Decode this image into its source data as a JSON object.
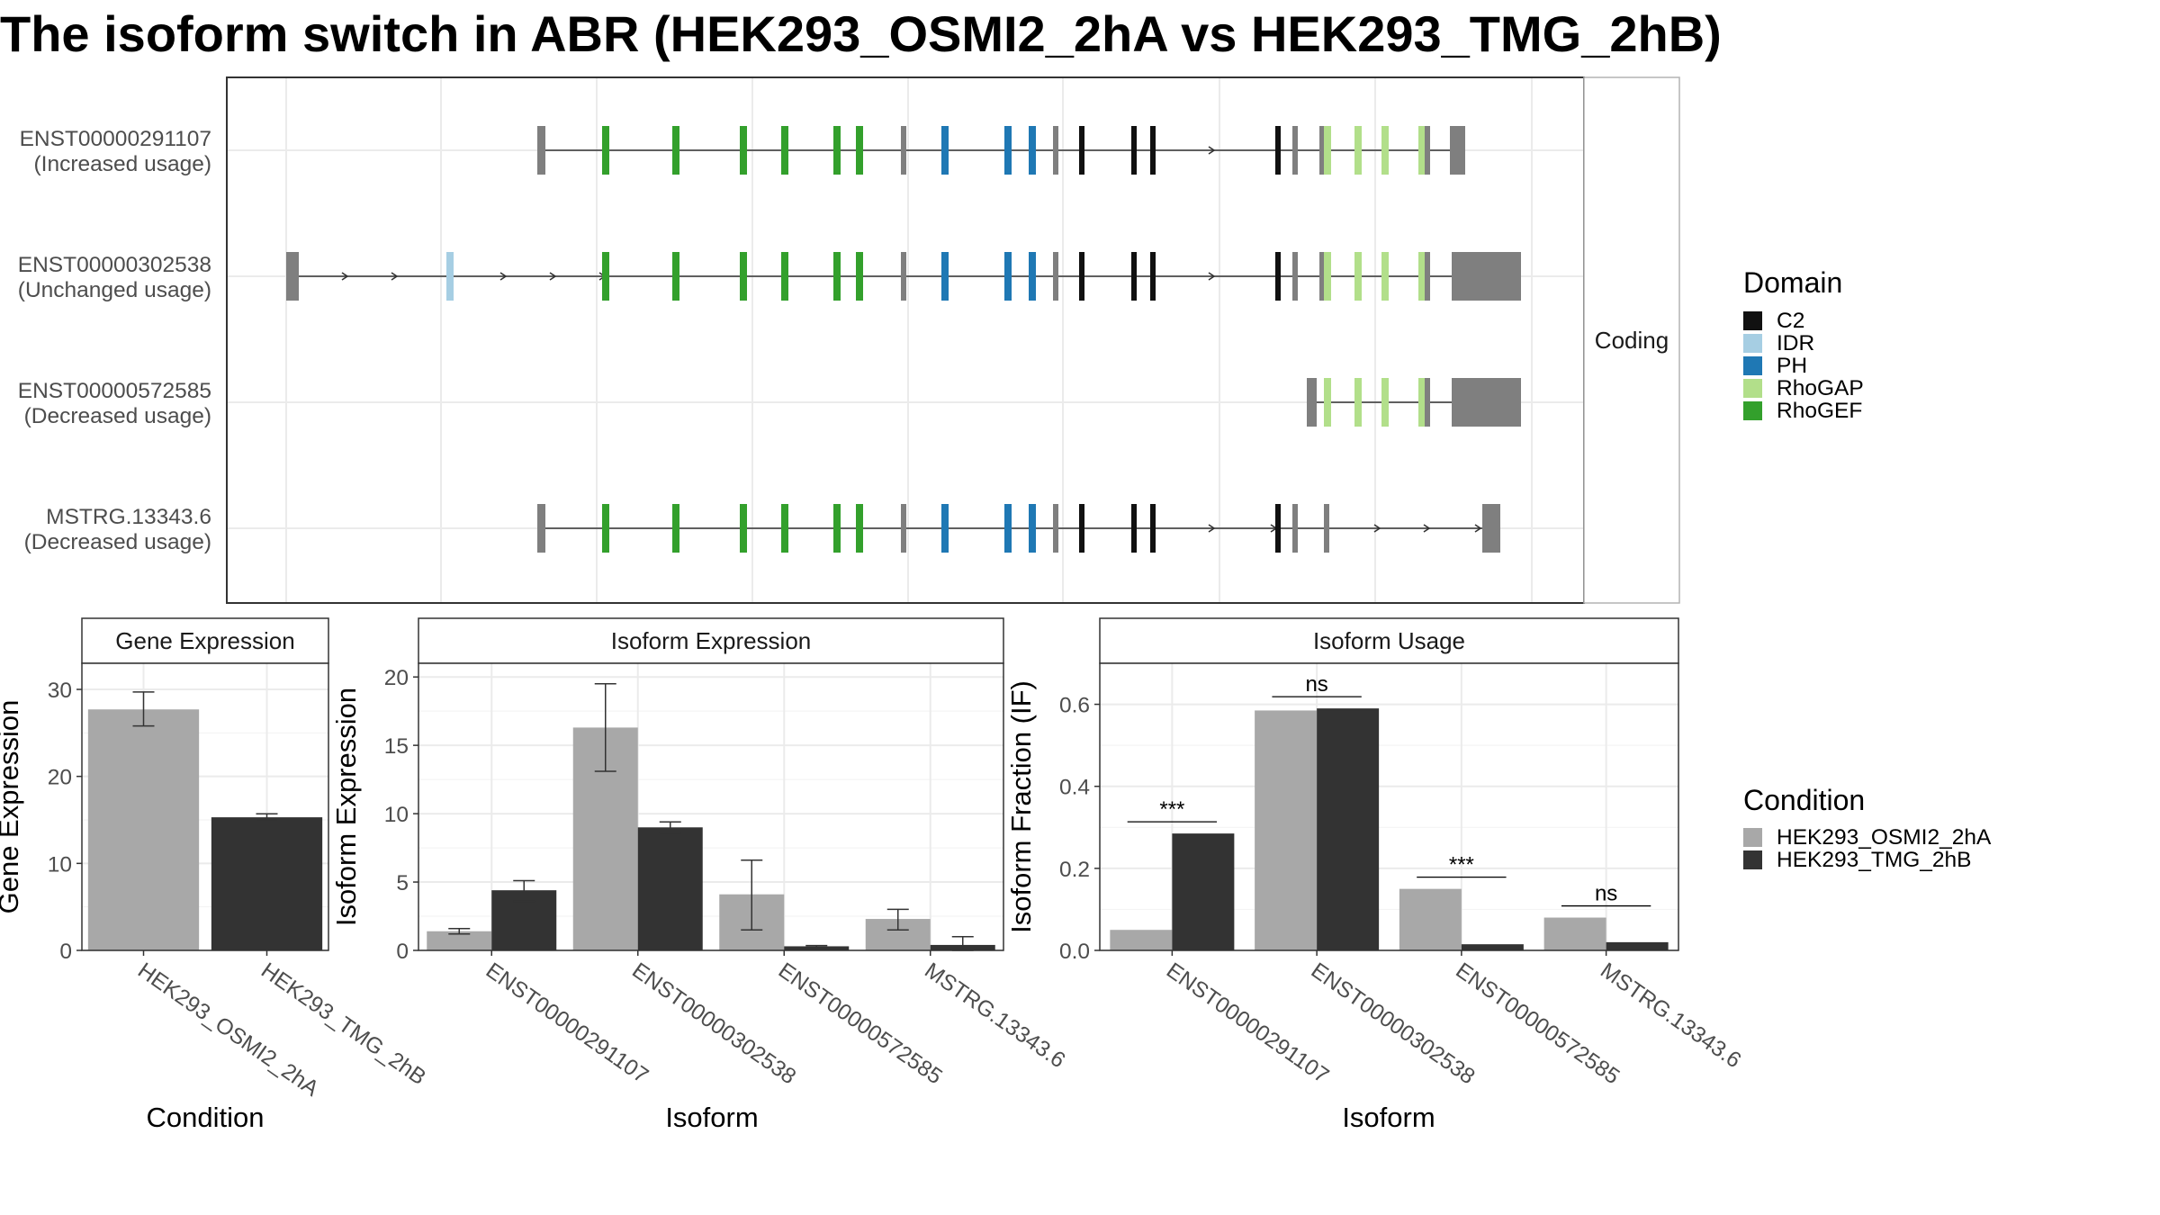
{
  "title": "The isoform switch in ABR (HEK293_OSMI2_2hA vs HEK293_TMG_2hB)",
  "colors": {
    "C2": "#111111",
    "IDR": "#a6cee3",
    "PH": "#1f78b4",
    "RhoGAP": "#b2df8a",
    "RhoGEF": "#33a02c",
    "noncoding_exon": "#7f7f7f",
    "cond1": "#a8a8a8",
    "cond2": "#333333"
  },
  "structure": {
    "strip_label": "Coding",
    "transcripts": [
      {
        "id": "ENST00000291107",
        "usage": "(Increased usage)"
      },
      {
        "id": "ENST00000302538",
        "usage": "(Unchanged usage)"
      },
      {
        "id": "ENST00000572585",
        "usage": "(Decreased usage)"
      },
      {
        "id": "MSTRG.13343.6",
        "usage": "(Decreased usage)"
      }
    ]
  },
  "legend_domain": {
    "title": "Domain",
    "items": [
      {
        "label": "C2",
        "color": "#111111"
      },
      {
        "label": "IDR",
        "color": "#a6cee3"
      },
      {
        "label": "PH",
        "color": "#1f78b4"
      },
      {
        "label": "RhoGAP",
        "color": "#b2df8a"
      },
      {
        "label": "RhoGEF",
        "color": "#33a02c"
      }
    ]
  },
  "legend_condition": {
    "title": "Condition",
    "items": [
      {
        "label": "HEK293_OSMI2_2hA",
        "color": "#a8a8a8"
      },
      {
        "label": "HEK293_TMG_2hB",
        "color": "#333333"
      }
    ]
  },
  "chart_data": [
    {
      "type": "bar",
      "title": "Gene Expression",
      "xlabel": "Condition",
      "ylabel": "Gene Expression",
      "ylim": [
        0,
        33
      ],
      "yticks": [
        0,
        10,
        20,
        30
      ],
      "categories": [
        "HEK293_OSMI2_2hA",
        "HEK293_TMG_2hB"
      ],
      "values": [
        27.7,
        15.3
      ],
      "errors": [
        [
          25.8,
          29.7
        ],
        [
          15.0,
          15.7
        ]
      ]
    },
    {
      "type": "bar",
      "title": "Isoform Expression",
      "xlabel": "Isoform",
      "ylabel": "Isoform Expression",
      "ylim": [
        0,
        21
      ],
      "yticks": [
        0,
        5,
        10,
        15,
        20
      ],
      "categories": [
        "ENST00000291107",
        "ENST00000302538",
        "ENST00000572585",
        "MSTRG.13343.6"
      ],
      "series": [
        {
          "name": "HEK293_OSMI2_2hA",
          "values": [
            1.4,
            16.3,
            4.1,
            2.3
          ],
          "errors": [
            [
              1.2,
              1.6
            ],
            [
              13.1,
              19.5
            ],
            [
              1.5,
              6.6
            ],
            [
              1.5,
              3.0
            ]
          ]
        },
        {
          "name": "HEK293_TMG_2hB",
          "values": [
            4.4,
            9.0,
            0.3,
            0.4
          ],
          "errors": [
            [
              3.6,
              5.1
            ],
            [
              8.6,
              9.4
            ],
            [
              0.25,
              0.35
            ],
            [
              0.0,
              1.0
            ]
          ]
        }
      ]
    },
    {
      "type": "bar",
      "title": "Isoform Usage",
      "xlabel": "Isoform",
      "ylabel": "Isoform Fraction (IF)",
      "ylim": [
        0,
        0.7
      ],
      "yticks": [
        0.0,
        0.2,
        0.4,
        0.6
      ],
      "yticklabels": [
        "0.0",
        "0.2",
        "0.4",
        "0.6"
      ],
      "categories": [
        "ENST00000291107",
        "ENST00000302538",
        "ENST00000572585",
        "MSTRG.13343.6"
      ],
      "series": [
        {
          "name": "HEK293_OSMI2_2hA",
          "values": [
            0.05,
            0.585,
            0.15,
            0.08
          ]
        },
        {
          "name": "HEK293_TMG_2hB",
          "values": [
            0.285,
            0.59,
            0.015,
            0.02
          ]
        }
      ],
      "significance": [
        "***",
        "ns",
        "***",
        "ns"
      ]
    }
  ]
}
